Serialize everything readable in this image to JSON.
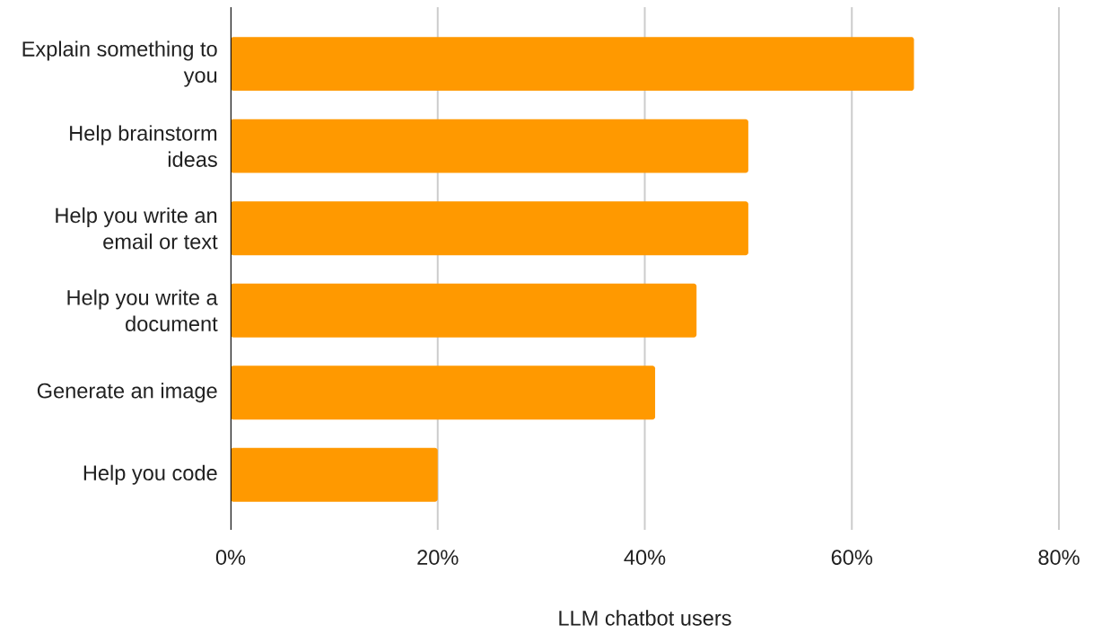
{
  "chart_data": {
    "type": "bar",
    "orientation": "horizontal",
    "xlabel": "LLM chatbot users",
    "categories": [
      "Explain something to you",
      "Help brainstorm ideas",
      "Help you write an email or text",
      "Help you write a document",
      "Generate an image",
      "Help you code"
    ],
    "values": [
      66,
      50,
      50,
      45,
      41,
      20
    ],
    "color": "#ff9900",
    "xlim": [
      0,
      80
    ],
    "xticks": [
      {
        "value": 0,
        "label": "0%"
      },
      {
        "value": 20,
        "label": "20%"
      },
      {
        "value": 40,
        "label": "40%"
      },
      {
        "value": 60,
        "label": "60%"
      },
      {
        "value": 80,
        "label": "80%"
      }
    ],
    "grid": "x"
  }
}
